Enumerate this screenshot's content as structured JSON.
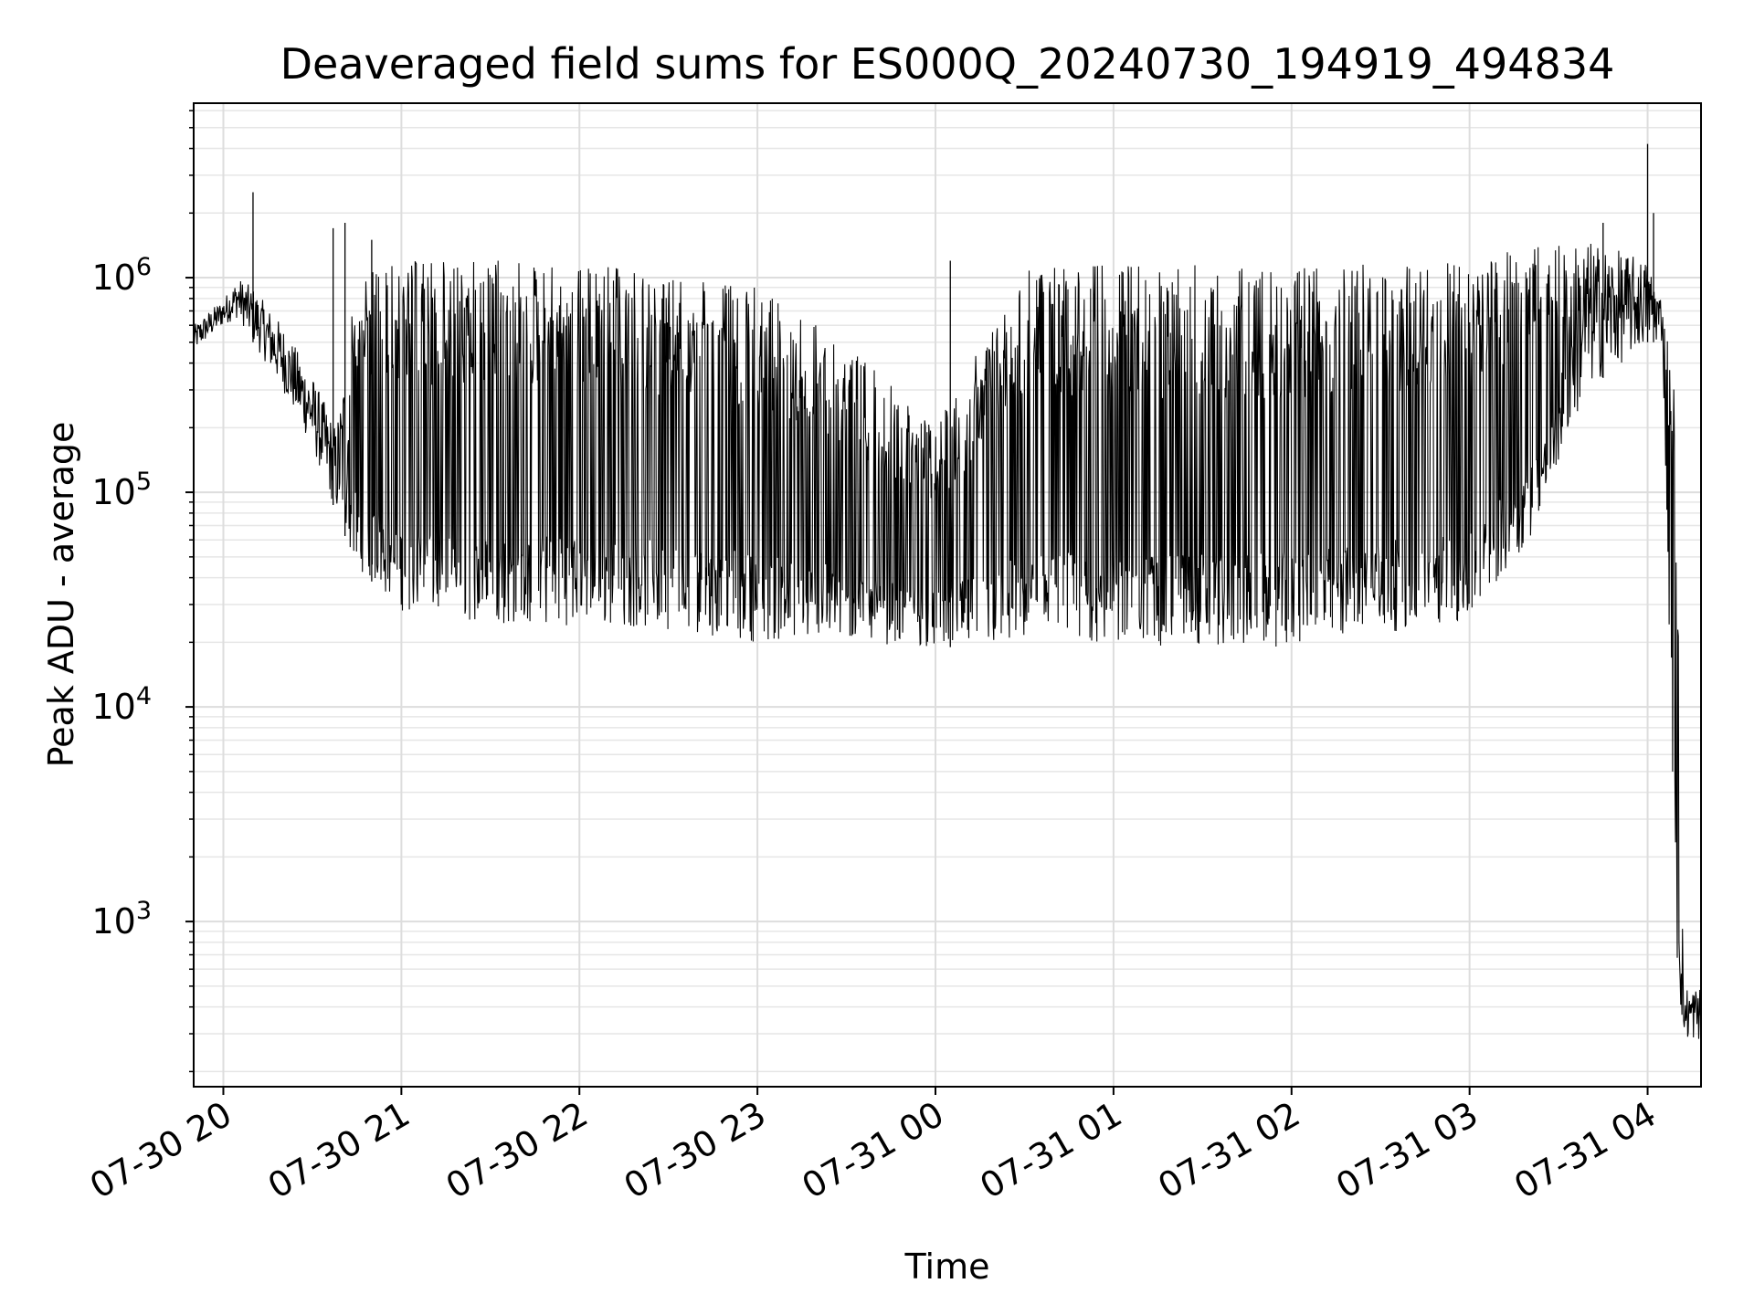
{
  "chart_data": {
    "type": "line",
    "title": "Deaveraged field sums for ES000Q_20240730_194919_494834",
    "xlabel": "Time",
    "ylabel": "Peak ADU - average",
    "y_scale": "log",
    "ylim": [
      170,
      6500000
    ],
    "xlim": [
      "07-30 19:50",
      "07-31 04:18"
    ],
    "grid": "major and minor, light gray",
    "line_color": "#000000",
    "x_ticks": [
      {
        "label": "07-30 20",
        "time": "07-30 20:00"
      },
      {
        "label": "07-30 21",
        "time": "07-30 21:00"
      },
      {
        "label": "07-30 22",
        "time": "07-30 22:00"
      },
      {
        "label": "07-30 23",
        "time": "07-30 23:00"
      },
      {
        "label": "07-31 00",
        "time": "07-31 00:00"
      },
      {
        "label": "07-31 01",
        "time": "07-31 01:00"
      },
      {
        "label": "07-31 02",
        "time": "07-31 02:00"
      },
      {
        "label": "07-31 03",
        "time": "07-31 03:00"
      },
      {
        "label": "07-31 04",
        "time": "07-31 04:00"
      }
    ],
    "y_ticks": [
      {
        "base": "10",
        "exp": "3",
        "value": 1000
      },
      {
        "base": "10",
        "exp": "4",
        "value": 10000
      },
      {
        "base": "10",
        "exp": "5",
        "value": 100000
      },
      {
        "base": "10",
        "exp": "6",
        "value": 1000000
      }
    ],
    "series": [
      {
        "description": "envelope of fluctuating data (low = troughs, high = peaks)",
        "points": [
          {
            "t": "07-30 19:50",
            "low": 450000,
            "high": 600000
          },
          {
            "t": "07-30 20:00",
            "low": 600000,
            "high": 800000
          },
          {
            "t": "07-30 20:05",
            "low": 650000,
            "high": 1000000
          },
          {
            "t": "07-30 20:10",
            "low": 500000,
            "high": 900000
          },
          {
            "t": "07-30 20:20",
            "low": 300000,
            "high": 600000
          },
          {
            "t": "07-30 20:30",
            "low": 160000,
            "high": 350000
          },
          {
            "t": "07-30 20:38",
            "low": 80000,
            "high": 200000
          },
          {
            "t": "07-30 20:45",
            "low": 45000,
            "high": 1100000
          },
          {
            "t": "07-30 21:00",
            "low": 28000,
            "high": 1200000
          },
          {
            "t": "07-30 21:30",
            "low": 24000,
            "high": 1200000
          },
          {
            "t": "07-30 22:00",
            "low": 24000,
            "high": 1200000
          },
          {
            "t": "07-30 22:30",
            "low": 23000,
            "high": 1000000
          },
          {
            "t": "07-30 23:00",
            "low": 20000,
            "high": 900000
          },
          {
            "t": "07-30 23:30",
            "low": 20000,
            "high": 500000
          },
          {
            "t": "07-31 00:00",
            "low": 19000,
            "high": 200000
          },
          {
            "t": "07-31 00:30",
            "low": 19000,
            "high": 1100000
          },
          {
            "t": "07-31 01:00",
            "low": 19000,
            "high": 1150000
          },
          {
            "t": "07-31 01:30",
            "low": 19000,
            "high": 1150000
          },
          {
            "t": "07-31 02:00",
            "low": 19000,
            "high": 1150000
          },
          {
            "t": "07-31 02:30",
            "low": 22000,
            "high": 1150000
          },
          {
            "t": "07-31 03:00",
            "low": 25000,
            "high": 1200000
          },
          {
            "t": "07-31 03:20",
            "low": 60000,
            "high": 1400000
          },
          {
            "t": "07-31 03:40",
            "low": 300000,
            "high": 1500000
          },
          {
            "t": "07-31 04:00",
            "low": 500000,
            "high": 1200000
          },
          {
            "t": "07-31 04:05",
            "low": 500000,
            "high": 800000
          },
          {
            "t": "07-31 04:10",
            "low": 600,
            "high": 250000
          },
          {
            "t": "07-31 04:12",
            "low": 280,
            "high": 500
          },
          {
            "t": "07-31 04:18",
            "low": 280,
            "high": 500
          }
        ],
        "spikes": [
          {
            "t": "07-30 20:10",
            "value": 2500000
          },
          {
            "t": "07-30 20:37",
            "value": 1700000
          },
          {
            "t": "07-30 20:41",
            "value": 1800000
          },
          {
            "t": "07-30 20:50",
            "value": 1500000
          },
          {
            "t": "07-31 00:05",
            "value": 1200000
          },
          {
            "t": "07-31 03:45",
            "value": 1800000
          },
          {
            "t": "07-31 04:00",
            "value": 4200000
          },
          {
            "t": "07-31 04:02",
            "value": 2000000
          }
        ]
      }
    ]
  }
}
